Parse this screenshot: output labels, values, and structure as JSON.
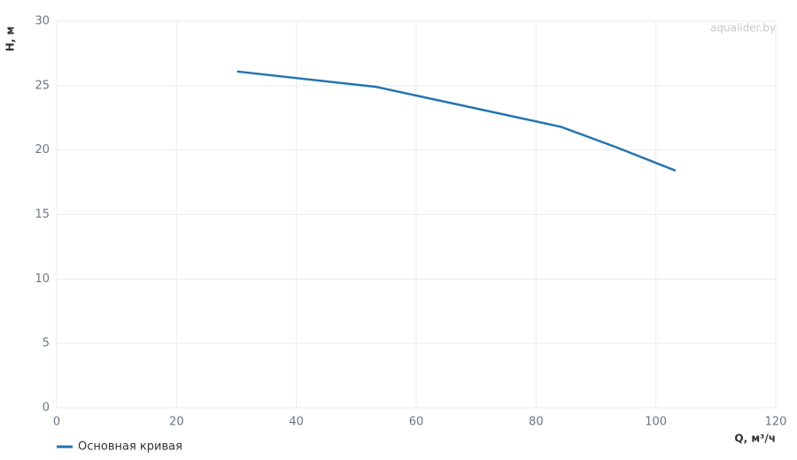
{
  "chart_data": {
    "type": "line",
    "x_label": "Q, м³/ч",
    "y_label": "H, м",
    "watermark": "aqualider.by",
    "x": [
      30.1,
      53.4,
      84.2,
      93.5,
      103.3
    ],
    "series": [
      {
        "name": "Основная кривая",
        "color": "#2374b0",
        "values": [
          26.1,
          24.9,
          21.8,
          20.2,
          18.4
        ]
      }
    ],
    "xlim": [
      0,
      120
    ],
    "xticks": [
      0,
      20,
      40,
      60,
      80,
      100,
      120
    ],
    "ylim": [
      0,
      30
    ],
    "yticks": [
      0,
      5,
      10,
      15,
      20,
      25,
      30
    ],
    "grid": true,
    "legend": "bottom-left"
  }
}
